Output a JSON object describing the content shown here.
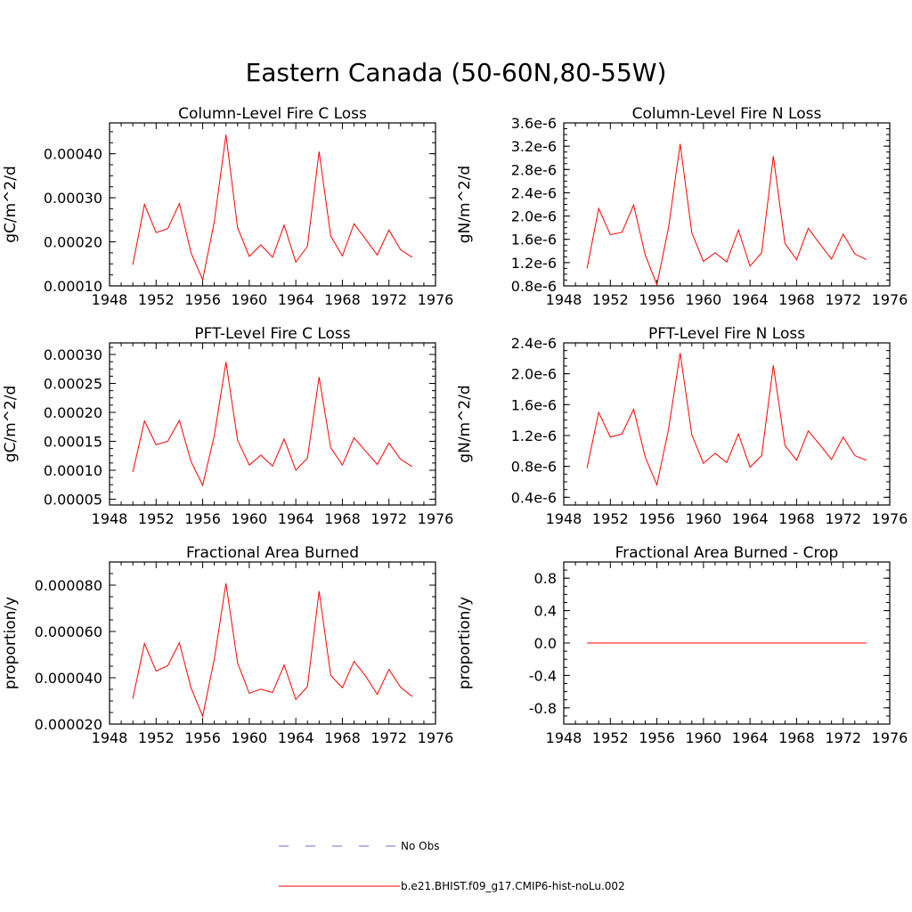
{
  "figure": {
    "title": "Eastern Canada (50-60N,80-55W)"
  },
  "colors": {
    "model": "#ff0000",
    "obs": "#6b6bd6",
    "axes": "#000000"
  },
  "legend": {
    "obs_label": "No Obs",
    "model_label": "b.e21.BHIST.f09_g17.CMIP6-hist-noLu.002"
  },
  "chart_data": [
    {
      "type": "line",
      "title": "Column-Level Fire C Loss",
      "ylabel": "gC/m^2/d",
      "xlim": [
        1948,
        1976
      ],
      "ylim": [
        0.0001,
        0.00047
      ],
      "x_ticks": [
        "1948",
        "1952",
        "1956",
        "1960",
        "1964",
        "1968",
        "1972",
        "1976"
      ],
      "y_ticks": [
        {
          "value": 0.0001,
          "label": "0.00010"
        },
        {
          "value": 0.0002,
          "label": "0.00020"
        },
        {
          "value": 0.0003,
          "label": "0.00030"
        },
        {
          "value": 0.0004,
          "label": "0.00040"
        }
      ],
      "series": [
        {
          "name": "b.e21.BHIST.f09_g17.CMIP6-hist-noLu.002",
          "x": [
            1950,
            1951,
            1952,
            1953,
            1954,
            1955,
            1956,
            1957,
            1958,
            1959,
            1960,
            1961,
            1962,
            1963,
            1964,
            1965,
            1966,
            1967,
            1968,
            1969,
            1970,
            1971,
            1972,
            1973,
            1974
          ],
          "y": [
            0.000148,
            0.000285,
            0.000221,
            0.00023,
            0.000287,
            0.000175,
            0.000114,
            0.000246,
            0.000443,
            0.000232,
            0.000167,
            0.000193,
            0.000165,
            0.000238,
            0.000154,
            0.00019,
            0.000405,
            0.000213,
            0.000168,
            0.000241,
            0.000206,
            0.00017,
            0.000227,
            0.000182,
            0.000165
          ]
        }
      ]
    },
    {
      "type": "line",
      "title": "Column-Level Fire N Loss",
      "ylabel": "gN/m^2/d",
      "xlim": [
        1948,
        1976
      ],
      "ylim": [
        8e-07,
        3.6e-06
      ],
      "x_ticks": [
        "1948",
        "1952",
        "1956",
        "1960",
        "1964",
        "1968",
        "1972",
        "1976"
      ],
      "y_ticks": [
        {
          "value": 8e-07,
          "label": "0.8e-6"
        },
        {
          "value": 1.2e-06,
          "label": "1.2e-6"
        },
        {
          "value": 1.6e-06,
          "label": "1.6e-6"
        },
        {
          "value": 2e-06,
          "label": "2.0e-6"
        },
        {
          "value": 2.4e-06,
          "label": "2.4e-6"
        },
        {
          "value": 2.8e-06,
          "label": "2.8e-6"
        },
        {
          "value": 3.2e-06,
          "label": "3.2e-6"
        },
        {
          "value": 3.6e-06,
          "label": "3.6e-6"
        }
      ],
      "series": [
        {
          "name": "b.e21.BHIST.f09_g17.CMIP6-hist-noLu.002",
          "x": [
            1950,
            1951,
            1952,
            1953,
            1954,
            1955,
            1956,
            1957,
            1958,
            1959,
            1960,
            1961,
            1962,
            1963,
            1964,
            1965,
            1966,
            1967,
            1968,
            1969,
            1970,
            1971,
            1972,
            1973,
            1974
          ],
          "y": [
            1.1e-06,
            2.13e-06,
            1.68e-06,
            1.72e-06,
            2.19e-06,
            1.33e-06,
            8.2e-07,
            1.8e-06,
            3.24e-06,
            1.71e-06,
            1.22e-06,
            1.37e-06,
            1.21e-06,
            1.76e-06,
            1.14e-06,
            1.37e-06,
            3.03e-06,
            1.53e-06,
            1.25e-06,
            1.79e-06,
            1.52e-06,
            1.26e-06,
            1.69e-06,
            1.35e-06,
            1.25e-06
          ]
        }
      ]
    },
    {
      "type": "line",
      "title": "PFT-Level Fire C Loss",
      "ylabel": "gC/m^2/d",
      "xlim": [
        1948,
        1976
      ],
      "ylim": [
        4e-05,
        0.00032
      ],
      "x_ticks": [
        "1948",
        "1952",
        "1956",
        "1960",
        "1964",
        "1968",
        "1972",
        "1976"
      ],
      "y_ticks": [
        {
          "value": 5e-05,
          "label": "0.00005"
        },
        {
          "value": 0.0001,
          "label": "0.00010"
        },
        {
          "value": 0.00015,
          "label": "0.00015"
        },
        {
          "value": 0.0002,
          "label": "0.00020"
        },
        {
          "value": 0.00025,
          "label": "0.00025"
        },
        {
          "value": 0.0003,
          "label": "0.00030"
        }
      ],
      "series": [
        {
          "name": "b.e21.BHIST.f09_g17.CMIP6-hist-noLu.002",
          "x": [
            1950,
            1951,
            1952,
            1953,
            1954,
            1955,
            1956,
            1957,
            1958,
            1959,
            1960,
            1961,
            1962,
            1963,
            1964,
            1965,
            1966,
            1967,
            1968,
            1969,
            1970,
            1971,
            1972,
            1973,
            1974
          ],
          "y": [
            9.7e-05,
            0.000185,
            0.000144,
            0.00015,
            0.000186,
            0.000115,
            7.4e-05,
            0.00016,
            0.000287,
            0.000152,
            0.000109,
            0.000126,
            0.000107,
            0.000154,
            0.0001,
            0.000121,
            0.000261,
            0.000139,
            0.000109,
            0.000156,
            0.000133,
            0.00011,
            0.000147,
            0.000119,
            0.000106
          ]
        }
      ]
    },
    {
      "type": "line",
      "title": "PFT-Level Fire N Loss",
      "ylabel": "gN/m^2/d",
      "xlim": [
        1948,
        1976
      ],
      "ylim": [
        3e-07,
        2.4e-06
      ],
      "x_ticks": [
        "1948",
        "1952",
        "1956",
        "1960",
        "1964",
        "1968",
        "1972",
        "1976"
      ],
      "y_ticks": [
        {
          "value": 4e-07,
          "label": "0.4e-6"
        },
        {
          "value": 8e-07,
          "label": "0.8e-6"
        },
        {
          "value": 1.2e-06,
          "label": "1.2e-6"
        },
        {
          "value": 1.6e-06,
          "label": "1.6e-6"
        },
        {
          "value": 2e-06,
          "label": "2.0e-6"
        },
        {
          "value": 2.4e-06,
          "label": "2.4e-6"
        }
      ],
      "series": [
        {
          "name": "b.e21.BHIST.f09_g17.CMIP6-hist-noLu.002",
          "x": [
            1950,
            1951,
            1952,
            1953,
            1954,
            1955,
            1956,
            1957,
            1958,
            1959,
            1960,
            1961,
            1962,
            1963,
            1964,
            1965,
            1966,
            1967,
            1968,
            1969,
            1970,
            1971,
            1972,
            1973,
            1974
          ],
          "y": [
            7.8e-07,
            1.5e-06,
            1.18e-06,
            1.22e-06,
            1.54e-06,
            9.2e-07,
            5.6e-07,
            1.28e-06,
            2.27e-06,
            1.21e-06,
            8.4e-07,
            9.7e-07,
            8.5e-07,
            1.22e-06,
            7.9e-07,
            9.4e-07,
            2.11e-06,
            1.07e-06,
            8.8e-07,
            1.26e-06,
            1.08e-06,
            8.9e-07,
            1.18e-06,
            9.4e-07,
            8.8e-07
          ]
        }
      ]
    },
    {
      "type": "line",
      "title": "Fractional Area Burned",
      "ylabel": "proportion/y",
      "xlim": [
        1948,
        1976
      ],
      "ylim": [
        2e-05,
        9e-05
      ],
      "x_ticks": [
        "1948",
        "1952",
        "1956",
        "1960",
        "1964",
        "1968",
        "1972",
        "1976"
      ],
      "y_ticks": [
        {
          "value": 2e-05,
          "label": "0.000020"
        },
        {
          "value": 4e-05,
          "label": "0.000040"
        },
        {
          "value": 6e-05,
          "label": "0.000060"
        },
        {
          "value": 8e-05,
          "label": "0.000080"
        }
      ],
      "series": [
        {
          "name": "b.e21.BHIST.f09_g17.CMIP6-hist-noLu.002",
          "x": [
            1950,
            1951,
            1952,
            1953,
            1954,
            1955,
            1956,
            1957,
            1958,
            1959,
            1960,
            1961,
            1962,
            1963,
            1964,
            1965,
            1966,
            1967,
            1968,
            1969,
            1970,
            1971,
            1972,
            1973,
            1974
          ],
          "y": [
            3.1e-05,
            5.48e-05,
            4.29e-05,
            4.52e-05,
            5.51e-05,
            3.56e-05,
            2.34e-05,
            4.81e-05,
            8.08e-05,
            4.64e-05,
            3.33e-05,
            3.51e-05,
            3.36e-05,
            4.55e-05,
            3.06e-05,
            3.62e-05,
            7.74e-05,
            4.1e-05,
            3.57e-05,
            4.71e-05,
            4.07e-05,
            3.28e-05,
            4.36e-05,
            3.59e-05,
            3.19e-05
          ]
        }
      ]
    },
    {
      "type": "line",
      "title": "Fractional Area Burned - Crop",
      "ylabel": "proportion/y",
      "xlim": [
        1948,
        1976
      ],
      "ylim": [
        -1.0,
        1.0
      ],
      "x_ticks": [
        "1948",
        "1952",
        "1956",
        "1960",
        "1964",
        "1968",
        "1972",
        "1976"
      ],
      "y_ticks": [
        {
          "value": -0.8,
          "label": "-0.8"
        },
        {
          "value": -0.4,
          "label": "-0.4"
        },
        {
          "value": 0.0,
          "label": "0.0"
        },
        {
          "value": 0.4,
          "label": "0.4"
        },
        {
          "value": 0.8,
          "label": "0.8"
        }
      ],
      "series": [
        {
          "name": "b.e21.BHIST.f09_g17.CMIP6-hist-noLu.002",
          "x": [
            1950,
            1951,
            1952,
            1953,
            1954,
            1955,
            1956,
            1957,
            1958,
            1959,
            1960,
            1961,
            1962,
            1963,
            1964,
            1965,
            1966,
            1967,
            1968,
            1969,
            1970,
            1971,
            1972,
            1973,
            1974
          ],
          "y": [
            0,
            0,
            0,
            0,
            0,
            0,
            0,
            0,
            0,
            0,
            0,
            0,
            0,
            0,
            0,
            0,
            0,
            0,
            0,
            0,
            0,
            0,
            0,
            0,
            0
          ]
        }
      ]
    }
  ]
}
